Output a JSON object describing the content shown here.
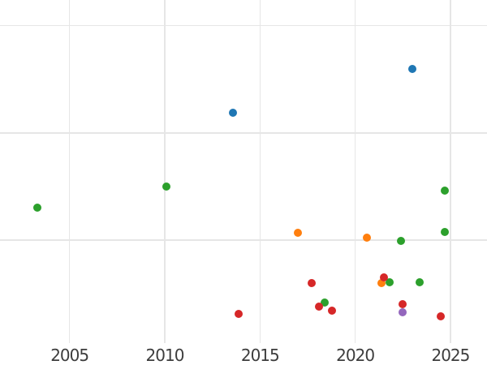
{
  "chart_data": {
    "type": "scatter",
    "title": "",
    "xlabel": "",
    "ylabel": "",
    "grid": true,
    "legend_position": "none",
    "xlim": [
      2001.35,
      2026.92
    ],
    "ylim": [
      0.04,
      3.24
    ],
    "x_ticks": [
      2005,
      2010,
      2015,
      2020,
      2025
    ],
    "x_tick_labels": [
      "2005",
      "2010",
      "2015",
      "2020",
      "2025"
    ],
    "y_gridline_values": [
      1,
      2,
      3
    ],
    "marker_diameter_px": 10,
    "series": [
      {
        "name": "orange",
        "color": "#ff7f0e",
        "points": [
          [
            2017.0,
            1.07
          ],
          [
            2020.6,
            1.02
          ],
          [
            2021.4,
            0.6
          ]
        ]
      },
      {
        "name": "green",
        "color": "#2ca02c",
        "points": [
          [
            2003.3,
            1.3
          ],
          [
            2010.1,
            1.5
          ],
          [
            2018.4,
            0.42
          ],
          [
            2021.8,
            0.61
          ],
          [
            2022.4,
            0.99
          ],
          [
            2023.4,
            0.61
          ],
          [
            2024.7,
            1.46
          ],
          [
            2024.7,
            1.08
          ]
        ]
      },
      {
        "name": "blue",
        "color": "#1f77b4",
        "points": [
          [
            2013.6,
            2.19
          ],
          [
            2023.0,
            2.6
          ]
        ]
      },
      {
        "name": "red",
        "color": "#d62728",
        "points": [
          [
            2013.9,
            0.31
          ],
          [
            2017.7,
            0.6
          ],
          [
            2018.1,
            0.38
          ],
          [
            2018.8,
            0.34
          ],
          [
            2021.5,
            0.65
          ],
          [
            2022.5,
            0.4
          ],
          [
            2024.5,
            0.29
          ]
        ]
      },
      {
        "name": "purple",
        "color": "#9467bd",
        "points": [
          [
            2022.5,
            0.33
          ]
        ]
      }
    ]
  },
  "colors": {
    "background": "#ffffff",
    "gridline": "#e6e6e6",
    "tick_label": "#3d3d3d"
  }
}
